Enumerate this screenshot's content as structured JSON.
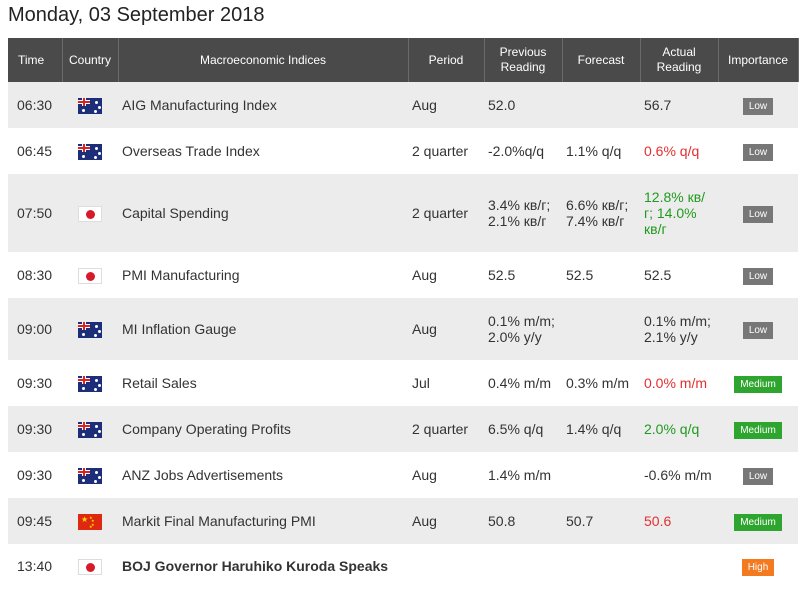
{
  "page_title": "Monday, 03 September 2018",
  "columns": {
    "time": "Time",
    "country": "Country",
    "indicator": "Macroeconomic Indices",
    "period": "Period",
    "previous": "Previous Reading",
    "forecast": "Forecast",
    "actual": "Actual Reading",
    "importance": "Importance"
  },
  "colors": {
    "header_bg": "#4a4a4a",
    "low": "#777777",
    "medium": "#2ea52e",
    "high": "#f47a20",
    "positive": "#1f9a1f",
    "negative": "#e23030"
  },
  "rows": [
    {
      "time": "06:30",
      "country": "australia",
      "indicator": "AIG Manufacturing Index",
      "period": "Aug",
      "previous": "52.0",
      "forecast": "",
      "actual": "56.7",
      "actual_tone": "neutral",
      "importance": "Low"
    },
    {
      "time": "06:45",
      "country": "australia",
      "indicator": "Overseas Trade Index",
      "period": "2 quarter",
      "previous": "-2.0%q/q",
      "forecast": "1.1% q/q",
      "actual": "0.6% q/q",
      "actual_tone": "negative",
      "importance": "Low"
    },
    {
      "time": "07:50",
      "country": "japan",
      "indicator": "Capital Spending",
      "period": "2 quarter",
      "previous": "3.4% кв/г; 2.1% кв/г",
      "forecast": "6.6% кв/г; 7.4% кв/г",
      "actual": "12.8% кв/г; 14.0% кв/г",
      "actual_tone": "positive",
      "importance": "Low"
    },
    {
      "time": "08:30",
      "country": "japan",
      "indicator": "PMI Manufacturing",
      "period": "Aug",
      "previous": "52.5",
      "forecast": "52.5",
      "actual": "52.5",
      "actual_tone": "neutral",
      "importance": "Low"
    },
    {
      "time": "09:00",
      "country": "australia",
      "indicator": "MI Inflation Gauge",
      "period": "Aug",
      "previous": "0.1% m/m; 2.0% y/y",
      "forecast": "",
      "actual": "0.1% m/m; 2.1% y/y",
      "actual_tone": "neutral",
      "importance": "Low"
    },
    {
      "time": "09:30",
      "country": "australia",
      "indicator": "Retail Sales",
      "period": "Jul",
      "previous": "0.4% m/m",
      "forecast": "0.3% m/m",
      "actual": "0.0% m/m",
      "actual_tone": "negative",
      "importance": "Medium"
    },
    {
      "time": "09:30",
      "country": "australia",
      "indicator": "Company Operating Profits",
      "period": "2 quarter",
      "previous": "6.5% q/q",
      "forecast": "1.4% q/q",
      "actual": "2.0% q/q",
      "actual_tone": "positive",
      "importance": "Medium"
    },
    {
      "time": "09:30",
      "country": "australia",
      "indicator": "ANZ Jobs Advertisements",
      "period": "Aug",
      "previous": "1.4% m/m",
      "forecast": "",
      "actual": "-0.6% m/m",
      "actual_tone": "neutral",
      "importance": "Low"
    },
    {
      "time": "09:45",
      "country": "china",
      "indicator": "Markit Final Manufacturing PMI",
      "period": "Aug",
      "previous": "50.8",
      "forecast": "50.7",
      "actual": "50.6",
      "actual_tone": "negative",
      "importance": "Medium"
    },
    {
      "time": "13:40",
      "country": "japan",
      "indicator": "BOJ Governor Haruhiko Kuroda Speaks",
      "period": "",
      "previous": "",
      "forecast": "",
      "actual": "",
      "actual_tone": "neutral",
      "importance": "High",
      "bold": true
    }
  ]
}
